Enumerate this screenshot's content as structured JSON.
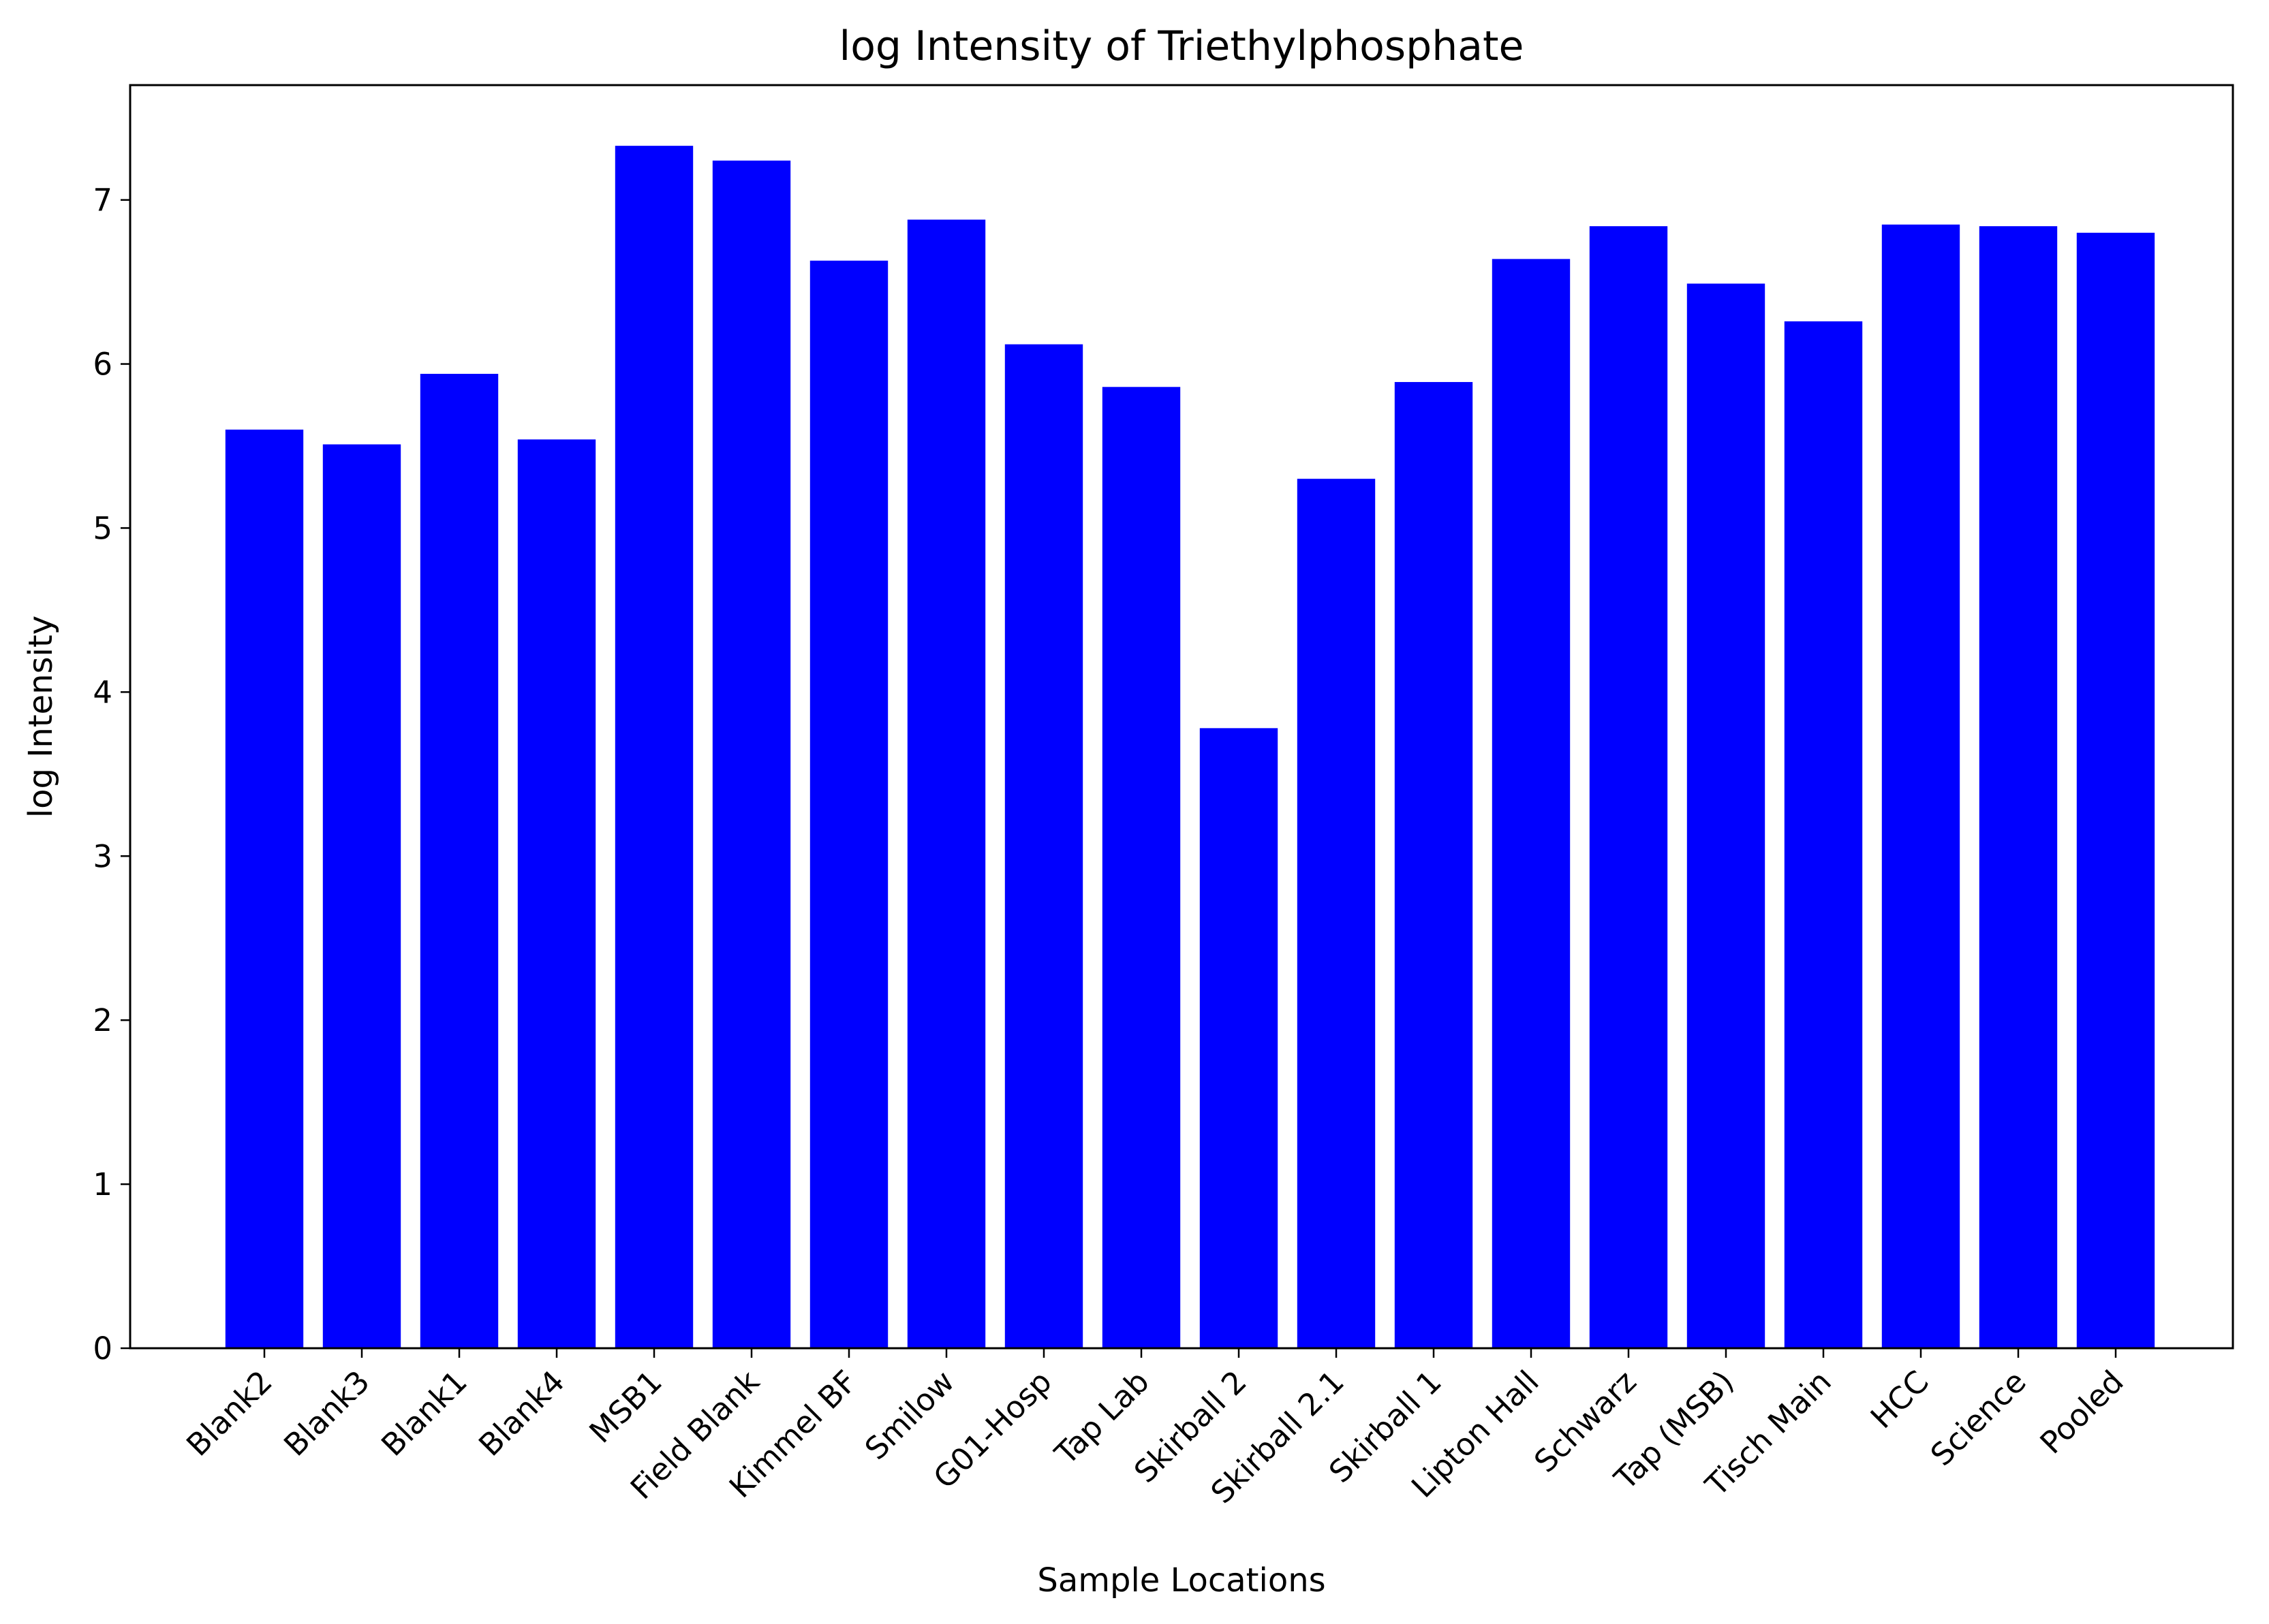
{
  "chart_data": {
    "type": "bar",
    "title": "log Intensity of Triethylphosphate",
    "xlabel": "Sample Locations",
    "ylabel": "log Intensity",
    "categories": [
      "Blank2",
      "Blank3",
      "Blank1",
      "Blank4",
      "MSB1",
      "Field Blank",
      "Kimmel BF",
      "Smilow",
      "G01-Hosp",
      "Tap Lab",
      "Skirball 2",
      "Skirball 2.1",
      "Skirball 1",
      "Lipton Hall",
      "Schwarz",
      "Tap (MSB)",
      "Tisch Main",
      "HCC",
      "Science",
      "Pooled"
    ],
    "values": [
      5.6,
      5.51,
      5.94,
      5.54,
      7.33,
      7.24,
      6.63,
      6.88,
      6.12,
      5.86,
      3.78,
      5.3,
      5.89,
      6.64,
      6.84,
      6.49,
      6.26,
      6.85,
      6.84,
      6.8
    ],
    "ylim": [
      0,
      7.7
    ],
    "yticks": [
      0,
      1,
      2,
      3,
      4,
      5,
      6,
      7
    ],
    "bar_color": "#0000ff",
    "grid": false,
    "legend": "none"
  }
}
